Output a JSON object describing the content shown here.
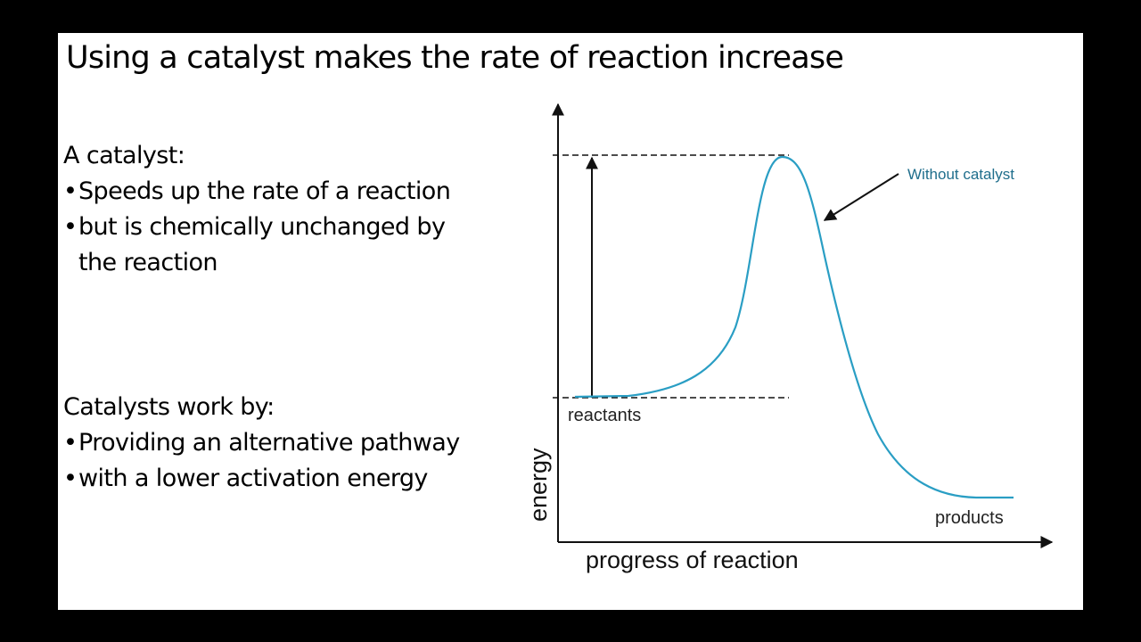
{
  "slide": {
    "title": "Using a catalyst makes the rate of reaction increase",
    "catalyst_section": {
      "heading": "A catalyst:",
      "bullets": [
        "Speeds up the rate of a reaction",
        "but is chemically unchanged by the reaction"
      ]
    },
    "mechanism_section": {
      "heading": "Catalysts work by:",
      "bullets": [
        "Providing an alternative pathway",
        "with a lower activation energy"
      ]
    },
    "bullet_glyph": "•"
  },
  "diagram": {
    "y_axis_label": "energy",
    "x_axis_label": "progress of reaction",
    "reactants_label": "reactants",
    "products_label": "products",
    "curve_label": "Without catalyst",
    "colors": {
      "curve": "#2a9ec4",
      "curve_label": "#1f6e8c",
      "axes": "#111111"
    }
  }
}
